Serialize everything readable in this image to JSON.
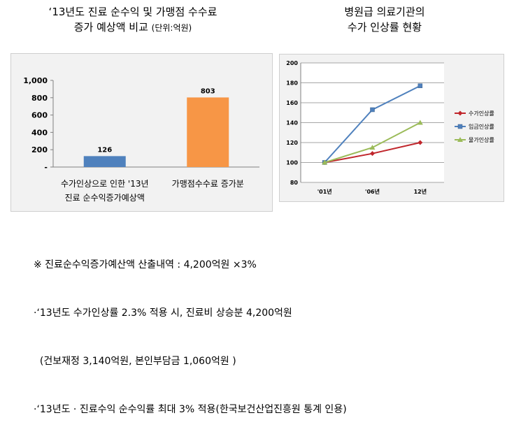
{
  "left_title": {
    "line1": "‘13년도 진료 순수익 및 가맹점 수수료",
    "line2": "증가 예상액 비교",
    "unit": "(단위:억원)"
  },
  "right_title": {
    "line1": "병원급 의료기관의",
    "line2": "수가 인상률 현황"
  },
  "notes": [
    "※ 진료순수익증가예산액 산출내역 : 4,200억원 ×3%",
    "·‘13년도 수가인상률 2.3% 적용 시, 진료비 상승분 4,200억원",
    "  (건보재정 3,140억원, 본인부담금 1,060억원 )",
    "·‘13년도 · 진료수익 순수익률 최대 3% 적용(한국보건산업진흥원 통계 인용)"
  ],
  "chart_data": [
    {
      "type": "bar",
      "categories": [
        [
          "수가인상으로 인한 '13년",
          "진료 순수익증가예상액"
        ],
        [
          "가맹점수수료 증가분"
        ]
      ],
      "values": [
        126,
        803
      ],
      "data_labels": [
        "126",
        "803"
      ],
      "bar_colors": [
        "#4f81bd",
        "#f79646"
      ],
      "ylim": [
        0,
        1000
      ],
      "y_ticks": [
        0,
        200,
        400,
        600,
        800,
        1000
      ],
      "y_tick_labels": [
        "-",
        "200",
        "400",
        "600",
        "800",
        "1,000"
      ],
      "grid": false,
      "legend": "none"
    },
    {
      "type": "line",
      "x": [
        "'01년",
        "'06년",
        "12년"
      ],
      "series": [
        {
          "name": "수가인상률",
          "values": [
            100,
            109,
            120
          ],
          "color": "#c0262c",
          "marker": "diamond"
        },
        {
          "name": "임금인상률",
          "values": [
            100,
            153,
            177
          ],
          "color": "#4f81bd",
          "marker": "square"
        },
        {
          "name": "물가인상률",
          "values": [
            100,
            115,
            140
          ],
          "color": "#9bbb59",
          "marker": "triangle"
        }
      ],
      "ylim": [
        80,
        200
      ],
      "y_ticks": [
        80,
        100,
        120,
        140,
        160,
        180,
        200
      ],
      "grid": true,
      "legend": "right"
    }
  ]
}
